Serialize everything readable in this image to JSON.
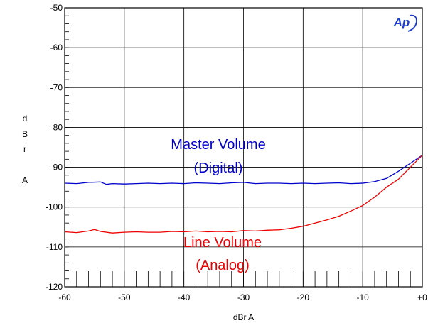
{
  "chart_data": {
    "type": "line",
    "xlabel": "dBr A",
    "ylabel": [
      "d",
      "B",
      "r",
      "",
      "A"
    ],
    "xlim": [
      -60,
      0
    ],
    "ylim": [
      -120,
      -50
    ],
    "x_ticks": [
      -60,
      -50,
      -40,
      -30,
      -20,
      -10,
      0
    ],
    "x_tick_labels": [
      "-60",
      "-50",
      "-40",
      "-30",
      "-20",
      "-10",
      "+0"
    ],
    "y_ticks": [
      -50,
      -60,
      -70,
      -80,
      -90,
      -100,
      -110,
      -120
    ],
    "y_tick_labels": [
      "-50",
      "-60",
      "-70",
      "-80",
      "-90",
      "-100",
      "-110",
      "-120"
    ],
    "grid": true,
    "series": [
      {
        "color": "#0000cc",
        "x": [
          -60,
          -58,
          -56,
          -54,
          -53,
          -52,
          -50,
          -48,
          -46,
          -44,
          -42,
          -40,
          -38,
          -36,
          -34,
          -32,
          -30,
          -28,
          -26,
          -24,
          -22,
          -20,
          -18,
          -16,
          -14,
          -12,
          -10,
          -8,
          -6,
          -4,
          -2,
          0
        ],
        "y": [
          -94,
          -94.1,
          -93.8,
          -93.7,
          -94.3,
          -94.1,
          -94.2,
          -94.1,
          -94.0,
          -94.1,
          -94.0,
          -94.1,
          -93.9,
          -94.0,
          -94.1,
          -93.9,
          -93.8,
          -94.1,
          -94.0,
          -94.0,
          -94.1,
          -94.0,
          -94.1,
          -94.0,
          -93.9,
          -94.1,
          -94.0,
          -93.6,
          -92.8,
          -91.0,
          -89.0,
          -87.0
        ]
      },
      {
        "color": "#ee0000",
        "x": [
          -60,
          -58,
          -56,
          -55,
          -54,
          -52,
          -50,
          -48,
          -46,
          -44,
          -42,
          -40,
          -38,
          -36,
          -34,
          -32,
          -30,
          -28,
          -26,
          -24,
          -22,
          -20,
          -18,
          -16,
          -14,
          -12,
          -10,
          -8,
          -6,
          -4,
          -2,
          0
        ],
        "y": [
          -106.2,
          -106.4,
          -106.0,
          -105.6,
          -106.1,
          -106.5,
          -106.3,
          -106.2,
          -106.3,
          -106.3,
          -106.1,
          -106.2,
          -106.0,
          -106.2,
          -106.1,
          -106.2,
          -105.9,
          -106.0,
          -105.8,
          -105.7,
          -105.3,
          -104.8,
          -104.0,
          -103.2,
          -102.3,
          -101.0,
          -99.6,
          -97.5,
          -95.0,
          -93.0,
          -90.0,
          -87.0
        ]
      }
    ],
    "annotations": [
      {
        "lines": [
          "Master Volume",
          "(Digital)"
        ],
        "color": "#0000cc"
      },
      {
        "lines": [
          "Line Volume",
          "(Analog)"
        ],
        "color": "#ee0000"
      }
    ],
    "logo": "Ap"
  }
}
